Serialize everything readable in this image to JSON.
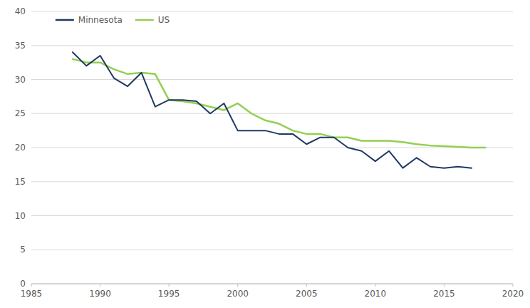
{
  "chart_data": {
    "type": "line",
    "series": [
      {
        "name": "Minnesota",
        "color": "#1f3864",
        "x": [
          1988,
          1989,
          1990,
          1991,
          1992,
          1993,
          1994,
          1995,
          1996,
          1997,
          1998,
          1999,
          2000,
          2001,
          2002,
          2003,
          2004,
          2005,
          2006,
          2007,
          2008,
          2009,
          2010,
          2011,
          2012,
          2013,
          2014,
          2015,
          2016,
          2017
        ],
        "values": [
          34.0,
          32.0,
          33.5,
          30.2,
          29.0,
          31.0,
          26.0,
          27.0,
          27.0,
          26.8,
          25.0,
          26.5,
          22.5,
          22.5,
          22.5,
          22.0,
          22.0,
          20.5,
          21.5,
          21.5,
          20.0,
          19.5,
          18.0,
          19.5,
          17.0,
          18.5,
          17.2,
          17.0,
          17.2,
          17.0
        ]
      },
      {
        "name": "US",
        "color": "#92d050",
        "x": [
          1988,
          1989,
          1990,
          1991,
          1992,
          1993,
          1994,
          1995,
          1996,
          1997,
          1998,
          1999,
          2000,
          2001,
          2002,
          2003,
          2004,
          2005,
          2006,
          2007,
          2008,
          2009,
          2010,
          2011,
          2012,
          2013,
          2014,
          2015,
          2016,
          2017,
          2018
        ],
        "values": [
          33.0,
          32.5,
          32.5,
          31.5,
          30.8,
          31.0,
          30.8,
          27.0,
          26.8,
          26.5,
          26.0,
          25.5,
          26.5,
          25.0,
          24.0,
          23.5,
          22.5,
          22.0,
          22.0,
          21.5,
          21.5,
          21.0,
          21.0,
          21.0,
          20.8,
          20.5,
          20.3,
          20.2,
          20.1,
          20.0,
          20.0
        ]
      }
    ],
    "xlim": [
      1985,
      2020
    ],
    "xticks": [
      1985,
      1990,
      1995,
      2000,
      2005,
      2010,
      2015,
      2020
    ],
    "ylim": [
      0,
      40
    ],
    "yticks": [
      0,
      5,
      10,
      15,
      20,
      25,
      30,
      35,
      40
    ],
    "grid": true,
    "legend": "top-left"
  }
}
